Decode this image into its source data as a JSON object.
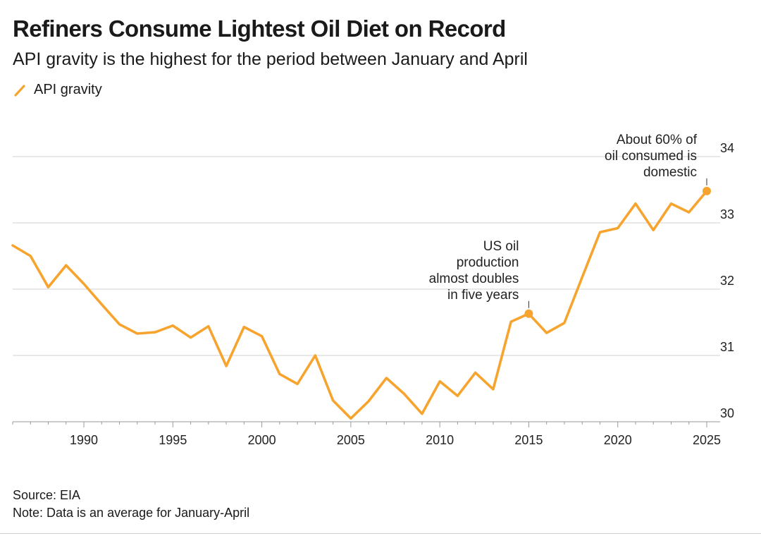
{
  "title": "Refiners Consume Lightest Oil Diet on Record",
  "subtitle": "API gravity is the highest for the period between January and April",
  "legend": {
    "label": "API gravity",
    "color": "#f7a42e"
  },
  "footer": {
    "source": "Source: EIA",
    "note": "Note: Data is an average for January-April"
  },
  "chart_data": {
    "type": "line",
    "ylim": [
      30,
      34
    ],
    "xlim": [
      1986,
      2025
    ],
    "y_ticks": [
      30,
      31,
      32,
      33,
      34
    ],
    "x_ticks": [
      1990,
      1995,
      2000,
      2005,
      2010,
      2015,
      2020,
      2025
    ],
    "grid": true,
    "y_axis_side": "right",
    "line_color": "#f7a42e",
    "series": [
      {
        "name": "API gravity",
        "x": [
          1986,
          1987,
          1988,
          1989,
          1990,
          1991,
          1992,
          1993,
          1994,
          1995,
          1996,
          1997,
          1998,
          1999,
          2000,
          2001,
          2002,
          2003,
          2004,
          2005,
          2006,
          2007,
          2008,
          2009,
          2010,
          2011,
          2012,
          2013,
          2014,
          2015,
          2016,
          2017,
          2018,
          2019,
          2020,
          2021,
          2022,
          2023,
          2024,
          2025
        ],
        "y": [
          32.66,
          32.5,
          32.03,
          32.36,
          32.08,
          31.77,
          31.47,
          31.33,
          31.35,
          31.45,
          31.27,
          31.44,
          30.84,
          31.43,
          31.29,
          30.72,
          30.57,
          31.0,
          30.32,
          30.05,
          30.31,
          30.66,
          30.42,
          30.12,
          30.61,
          30.39,
          30.74,
          30.49,
          31.51,
          31.63,
          31.34,
          31.49,
          32.18,
          32.86,
          32.92,
          33.29,
          32.89,
          33.29,
          33.16,
          33.48
        ]
      }
    ],
    "annotations": [
      {
        "x": 2015,
        "y": 31.63,
        "lines": [
          "US oil",
          "production",
          "almost doubles",
          "in five years"
        ]
      },
      {
        "x": 2025,
        "y": 33.48,
        "lines": [
          "About 60% of",
          "oil consumed is",
          "domestic"
        ]
      }
    ]
  }
}
